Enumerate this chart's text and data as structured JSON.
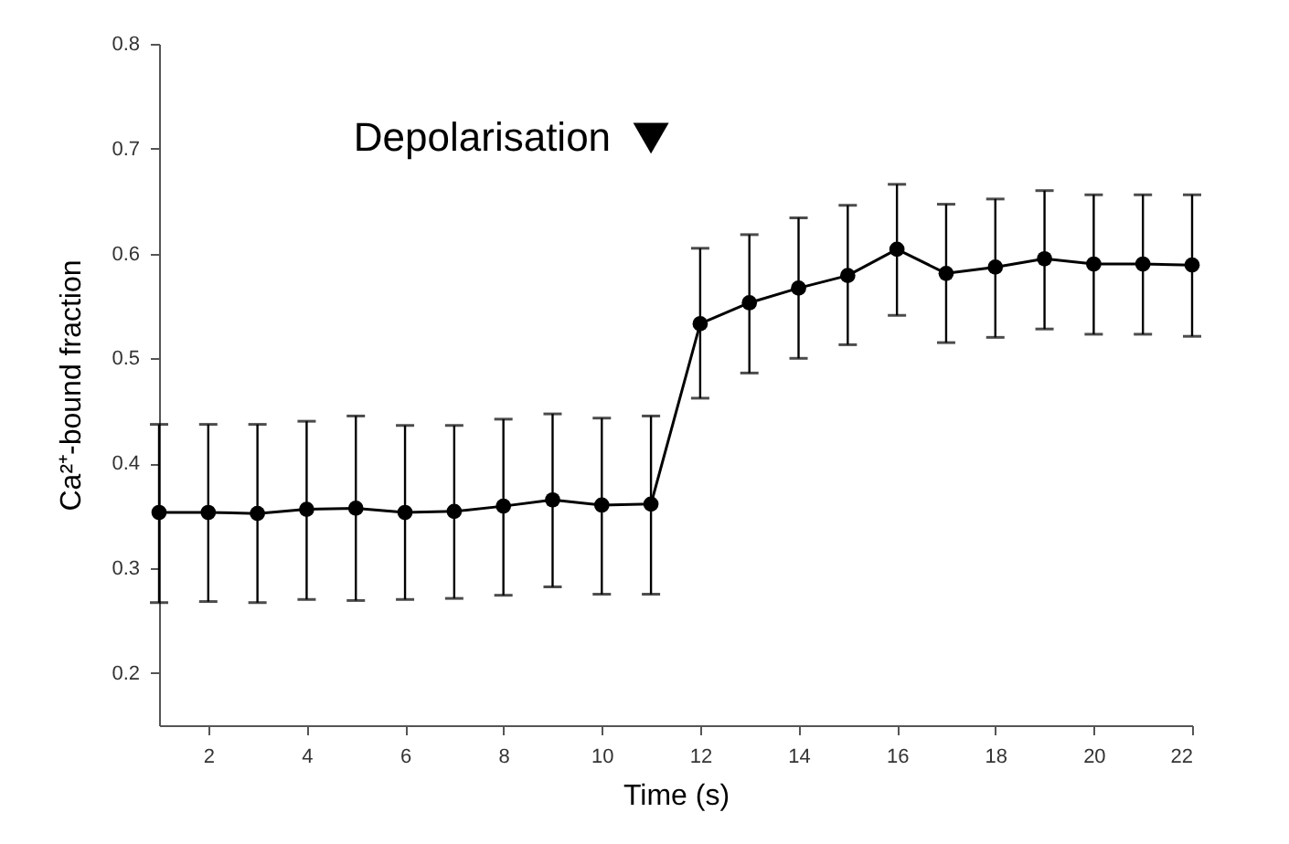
{
  "chart_data": {
    "type": "line",
    "xlabel": "Time (s)",
    "ylabel": "Ca²⁺-bound fraction",
    "x": [
      1,
      2,
      3,
      4,
      5,
      6,
      7,
      8,
      9,
      10,
      11,
      12,
      13,
      14,
      15,
      16,
      17,
      18,
      19,
      20,
      21,
      22
    ],
    "series": [
      {
        "color": "#000000",
        "values": [
          0.353,
          0.353,
          0.352,
          0.356,
          0.357,
          0.353,
          0.354,
          0.359,
          0.365,
          0.36,
          0.361,
          0.533,
          0.553,
          0.567,
          0.579,
          0.604,
          0.581,
          0.587,
          0.595,
          0.59,
          0.59,
          0.589
        ],
        "errors": [
          [
            0.267,
            0.437
          ],
          [
            0.268,
            0.437
          ],
          [
            0.267,
            0.437
          ],
          [
            0.27,
            0.44
          ],
          [
            0.269,
            0.445
          ],
          [
            0.27,
            0.436
          ],
          [
            0.271,
            0.436
          ],
          [
            0.274,
            0.442
          ],
          [
            0.282,
            0.447
          ],
          [
            0.275,
            0.443
          ],
          [
            0.275,
            0.445
          ],
          [
            0.462,
            0.605
          ],
          [
            0.486,
            0.618
          ],
          [
            0.5,
            0.634
          ],
          [
            0.513,
            0.646
          ],
          [
            0.541,
            0.666
          ],
          [
            0.515,
            0.647
          ],
          [
            0.52,
            0.652
          ],
          [
            0.528,
            0.66
          ],
          [
            0.523,
            0.656
          ],
          [
            0.523,
            0.656
          ],
          [
            0.521,
            0.656
          ]
        ]
      }
    ],
    "xlim": [
      1,
      22
    ],
    "xticks": [
      2,
      4,
      6,
      8,
      10,
      12,
      14,
      16,
      18,
      20,
      22
    ],
    "ylim": [
      0.15,
      0.8
    ],
    "yticks": [
      0.2,
      0.3,
      0.4,
      0.5,
      0.6,
      0.7,
      0.8
    ],
    "marker": "circle",
    "line_style": "solid",
    "grid": false,
    "annotations": [
      {
        "text": "Depolarisation",
        "x": 11,
        "y": 0.71
      }
    ]
  }
}
